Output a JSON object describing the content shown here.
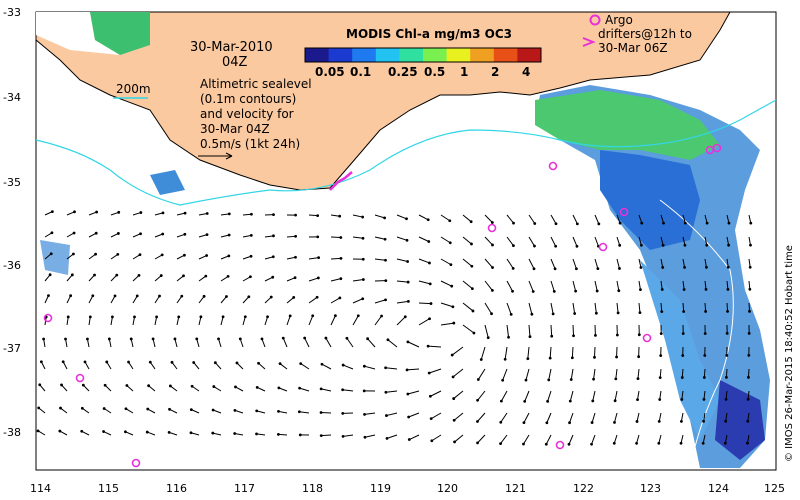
{
  "map": {
    "lon_ticks": [
      "114",
      "115",
      "116",
      "117",
      "118",
      "119",
      "120",
      "121",
      "122",
      "123",
      "124",
      "125"
    ],
    "lat_ticks": [
      "-33",
      "-34",
      "-35",
      "-36",
      "-37",
      "-38"
    ],
    "date_line1": "30-Mar-2010",
    "date_line2": "04Z",
    "legend_text": [
      "Altimetric sealevel",
      "(0.1m contours)",
      "and velocity for",
      "30-Mar 04Z",
      "0.5m/s (1kt 24h)"
    ],
    "isobath_label": "200m",
    "argo_label": [
      "Argo",
      "drifters@12h to",
      "30-Mar 06Z"
    ],
    "credit": "© IMOS 26-Mar-2015 18:40:52 Hobart time",
    "colors": {
      "land": "#fbc9a0",
      "isobath": "#33d6e6",
      "argo": "#e832d8",
      "arrow": "#000000"
    }
  },
  "colorbar": {
    "title": "MODIS Chl-a mg/m3 OC3",
    "ticks": [
      "0.05",
      "0.1",
      "0.25",
      "0.5",
      "1",
      "2",
      "4"
    ],
    "colors": [
      "#1a1a8c",
      "#1a3ad0",
      "#1f7af0",
      "#22c3f0",
      "#2fe0a0",
      "#7af050",
      "#e8f020",
      "#f0a020",
      "#e85018",
      "#b81818"
    ]
  }
}
